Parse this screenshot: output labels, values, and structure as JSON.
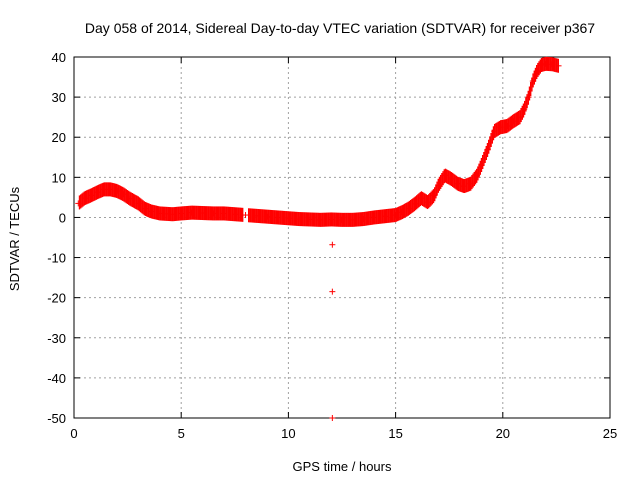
{
  "chart_data": {
    "type": "scatter",
    "title": "Day 058 of 2014, Sidereal Day-to-day VTEC variation (SDTVAR) for receiver p367",
    "xlabel": "GPS time / hours",
    "ylabel": "SDTVAR / TECUs",
    "xlim": [
      0,
      25
    ],
    "ylim": [
      -50,
      40
    ],
    "xticks": [
      0,
      5,
      10,
      15,
      20,
      25
    ],
    "yticks": [
      -50,
      -40,
      -30,
      -20,
      -10,
      0,
      10,
      20,
      30,
      40
    ],
    "grid": true,
    "marker": "+",
    "series": [
      {
        "name": "SDTVAR",
        "color": "#ff0000",
        "band_halfwidth": 1.0,
        "x": [
          0.2,
          0.5,
          0.8,
          1.1,
          1.4,
          1.7,
          2.0,
          2.3,
          2.6,
          3.0,
          3.3,
          3.6,
          4.0,
          4.3,
          4.6,
          5.0,
          5.5,
          6.0,
          6.5,
          7.0,
          7.5,
          8.0,
          8.5,
          9.0,
          9.5,
          10.0,
          10.5,
          11.0,
          11.5,
          12.0,
          12.5,
          13.0,
          13.5,
          14.0,
          14.5,
          15.0,
          15.3,
          15.6,
          15.9,
          16.2,
          16.5,
          16.8,
          17.0,
          17.3,
          17.6,
          17.9,
          18.2,
          18.5,
          18.8,
          19.0,
          19.3,
          19.6,
          19.9,
          20.2,
          20.5,
          20.8,
          21.0,
          21.2,
          21.4,
          21.6,
          21.8,
          22.0,
          22.3,
          22.6
        ],
        "y": [
          3.5,
          4.8,
          5.5,
          6.3,
          7.0,
          7.0,
          6.6,
          5.8,
          4.7,
          3.5,
          2.2,
          1.5,
          1.0,
          0.9,
          0.8,
          1.0,
          1.2,
          1.1,
          1.0,
          1.0,
          0.8,
          0.6,
          0.4,
          0.2,
          0.0,
          -0.2,
          -0.4,
          -0.5,
          -0.6,
          -0.5,
          -0.6,
          -0.6,
          -0.4,
          0.0,
          0.3,
          0.6,
          1.3,
          2.2,
          3.4,
          4.8,
          3.8,
          5.5,
          8.0,
          10.5,
          9.6,
          8.4,
          7.8,
          8.4,
          10.5,
          13.0,
          17.0,
          21.5,
          22.5,
          22.8,
          24.0,
          25.0,
          27.0,
          30.0,
          34.0,
          36.5,
          38.0,
          38.3,
          38.2,
          37.8
        ]
      },
      {
        "name": "outliers",
        "color": "#ff0000",
        "x": [
          12.05,
          12.05,
          12.05
        ],
        "y": [
          -6.8,
          -18.5,
          -50
        ]
      }
    ]
  }
}
